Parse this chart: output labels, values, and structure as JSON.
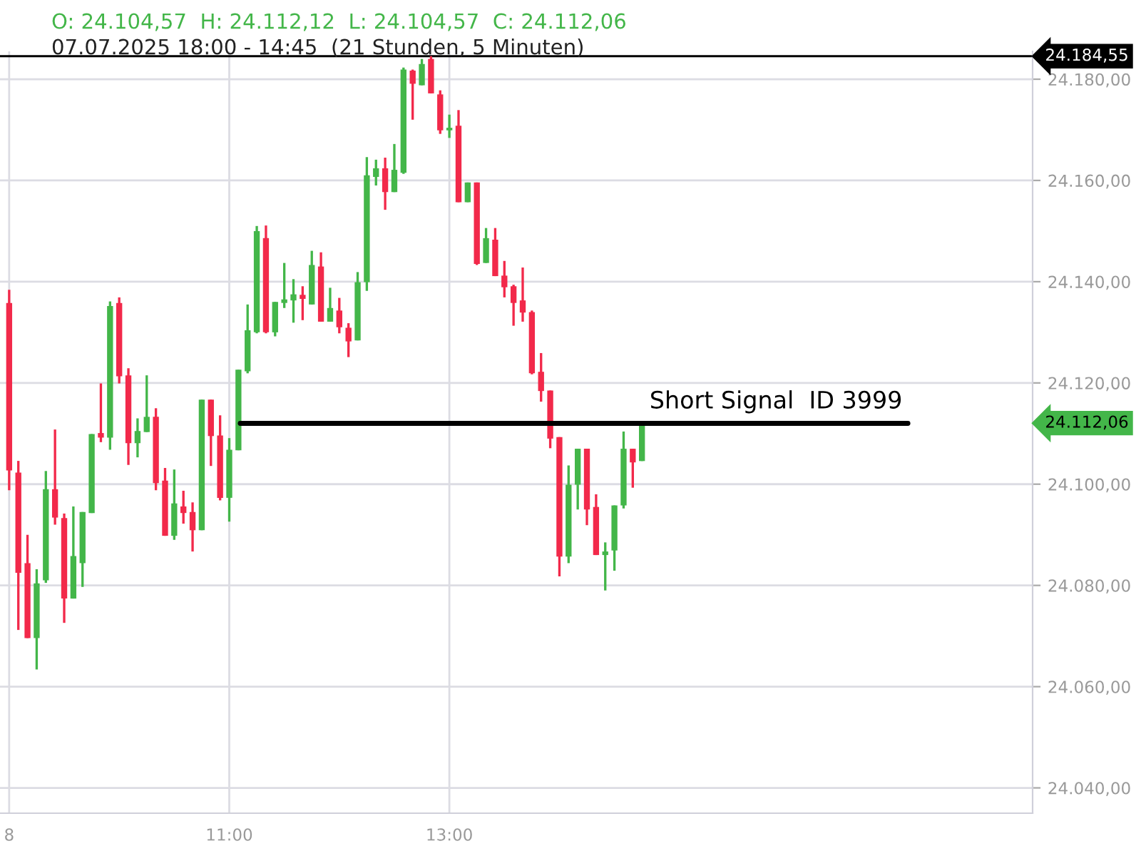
{
  "chart_data": {
    "type": "candlestick",
    "title": "O: 24.104,57  H: 24.112,12  L: 24.104,57  C: 24.112,06",
    "subtitle": "07.07.2025 18:00 - 14:45  (21 Stunden, 5 Minuten)",
    "x": [
      "2025-07-08T09:00",
      "2025-07-08T09:05",
      "2025-07-08T09:10",
      "2025-07-08T09:15",
      "2025-07-08T09:20",
      "2025-07-08T09:25",
      "2025-07-08T09:30",
      "2025-07-08T09:35",
      "2025-07-08T09:40",
      "2025-07-08T09:45",
      "2025-07-08T09:50",
      "2025-07-08T09:55",
      "2025-07-08T10:00",
      "2025-07-08T10:05",
      "2025-07-08T10:10",
      "2025-07-08T10:15",
      "2025-07-08T10:20",
      "2025-07-08T10:25",
      "2025-07-08T10:30",
      "2025-07-08T10:35",
      "2025-07-08T10:40",
      "2025-07-08T10:45",
      "2025-07-08T10:50",
      "2025-07-08T10:55",
      "2025-07-08T11:00",
      "2025-07-08T11:05",
      "2025-07-08T11:10",
      "2025-07-08T11:15",
      "2025-07-08T11:20",
      "2025-07-08T11:25",
      "2025-07-08T11:30",
      "2025-07-08T11:35",
      "2025-07-08T11:40",
      "2025-07-08T11:45",
      "2025-07-08T11:50",
      "2025-07-08T11:55",
      "2025-07-08T12:00",
      "2025-07-08T12:05",
      "2025-07-08T12:10",
      "2025-07-08T12:15",
      "2025-07-08T12:20",
      "2025-07-08T12:25",
      "2025-07-08T12:30",
      "2025-07-08T12:35",
      "2025-07-08T12:40",
      "2025-07-08T12:45",
      "2025-07-08T12:50",
      "2025-07-08T12:55",
      "2025-07-08T13:00",
      "2025-07-08T13:05",
      "2025-07-08T13:10",
      "2025-07-08T13:15",
      "2025-07-08T13:20",
      "2025-07-08T13:25",
      "2025-07-08T13:30",
      "2025-07-08T13:35",
      "2025-07-08T13:40",
      "2025-07-08T13:45",
      "2025-07-08T13:50",
      "2025-07-08T13:55",
      "2025-07-08T14:00",
      "2025-07-08T14:05",
      "2025-07-08T14:10",
      "2025-07-08T14:15",
      "2025-07-08T14:20",
      "2025-07-08T14:25",
      "2025-07-08T14:30",
      "2025-07-08T14:35",
      "2025-07-08T14:40",
      "2025-07-08T14:45"
    ],
    "ohlc": [
      [
        24135.8,
        24138.4,
        24098.8,
        24102.7
      ],
      [
        24102.3,
        24104.6,
        24071.2,
        24082.5
      ],
      [
        24084.4,
        24090.0,
        24069.6,
        24069.6
      ],
      [
        24069.6,
        24083.2,
        24063.4,
        24080.4
      ],
      [
        24081.0,
        24102.6,
        24080.5,
        24099.0
      ],
      [
        24099.0,
        24110.8,
        24092.0,
        24093.4
      ],
      [
        24093.3,
        24094.2,
        24072.6,
        24077.4
      ],
      [
        24077.4,
        24095.6,
        24077.4,
        24085.8
      ],
      [
        24084.4,
        24094.5,
        24079.7,
        24094.5
      ],
      [
        24094.3,
        24109.9,
        24094.3,
        24109.9
      ],
      [
        24110.1,
        24119.9,
        24108.3,
        24109.2
      ],
      [
        24109.2,
        24136.1,
        24106.8,
        24135.2
      ],
      [
        24135.8,
        24136.9,
        24119.9,
        24121.3
      ],
      [
        24121.5,
        24122.9,
        24103.8,
        24108.1
      ],
      [
        24108.1,
        24113.0,
        24105.3,
        24110.5
      ],
      [
        24110.3,
        24121.5,
        24110.3,
        24113.3
      ],
      [
        24113.3,
        24115.0,
        24098.8,
        24100.2
      ],
      [
        24100.7,
        24103.2,
        24089.8,
        24089.8
      ],
      [
        24089.8,
        24102.9,
        24089.0,
        24096.2
      ],
      [
        24095.6,
        24098.7,
        24092.2,
        24094.3
      ],
      [
        24094.5,
        24096.4,
        24086.7,
        24090.9
      ],
      [
        24090.9,
        24116.7,
        24090.9,
        24116.7
      ],
      [
        24116.7,
        24116.7,
        24103.6,
        24109.5
      ],
      [
        24109.6,
        24113.6,
        24096.8,
        24097.3
      ],
      [
        24097.3,
        24109.1,
        24092.6,
        24106.8
      ],
      [
        24106.7,
        24122.6,
        24106.7,
        24122.6
      ],
      [
        24122.3,
        24135.5,
        24121.9,
        24130.4
      ],
      [
        24130.0,
        24151.0,
        24129.8,
        24150.0
      ],
      [
        24148.6,
        24151.1,
        24129.8,
        24130.0
      ],
      [
        24130.0,
        24136.0,
        24129.2,
        24136.0
      ],
      [
        24135.8,
        24143.7,
        24134.8,
        24136.5
      ],
      [
        24136.3,
        24140.5,
        24131.9,
        24137.5
      ],
      [
        24137.4,
        24139.1,
        24132.4,
        24136.6
      ],
      [
        24135.5,
        24146.1,
        24135.5,
        24143.3
      ],
      [
        24143.0,
        24145.8,
        24132.1,
        24132.1
      ],
      [
        24132.1,
        24138.8,
        24132.1,
        24134.8
      ],
      [
        24134.3,
        24136.8,
        24129.8,
        24131.0
      ],
      [
        24130.9,
        24131.8,
        24125.1,
        24128.2
      ],
      [
        24128.4,
        24141.9,
        24128.4,
        24139.9
      ],
      [
        24139.9,
        24164.6,
        24138.2,
        24161.0
      ],
      [
        24160.7,
        24164.1,
        24159.0,
        24162.4
      ],
      [
        24162.4,
        24164.5,
        24154.2,
        24157.7
      ],
      [
        24157.7,
        24167.2,
        24157.7,
        24162.1
      ],
      [
        24161.5,
        24182.3,
        24161.3,
        24181.9
      ],
      [
        24181.7,
        24181.9,
        24172.0,
        24179.1
      ],
      [
        24178.8,
        24184.0,
        24178.8,
        24183.0
      ],
      [
        24184.0,
        24184.55,
        24177.2,
        24177.2
      ],
      [
        24177.0,
        24177.8,
        24169.2,
        24169.9
      ],
      [
        24169.9,
        24173.0,
        24168.4,
        24170.4
      ],
      [
        24170.8,
        24173.9,
        24155.7,
        24155.7
      ],
      [
        24155.7,
        24159.6,
        24155.7,
        24159.6
      ],
      [
        24159.6,
        24159.6,
        24143.3,
        24143.5
      ],
      [
        24143.7,
        24150.6,
        24143.7,
        24148.6
      ],
      [
        24148.3,
        24150.6,
        24141.1,
        24141.1
      ],
      [
        24141.2,
        24144.1,
        24136.9,
        24138.9
      ],
      [
        24139.1,
        24139.4,
        24131.3,
        24135.8
      ],
      [
        24136.3,
        24142.8,
        24132.1,
        24133.9
      ],
      [
        24134.0,
        24134.3,
        24121.7,
        24121.9
      ],
      [
        24122.2,
        24125.9,
        24116.3,
        24118.4
      ],
      [
        24118.5,
        24118.5,
        24107.1,
        24109.0
      ],
      [
        24109.3,
        24109.3,
        24081.8,
        24085.7
      ],
      [
        24085.7,
        24103.7,
        24084.4,
        24099.9
      ],
      [
        24099.9,
        24107.0,
        24095.0,
        24107.0
      ],
      [
        24107.0,
        24107.0,
        24091.9,
        24095.0
      ],
      [
        24095.5,
        24098.0,
        24086.0,
        24086.0
      ],
      [
        24086.0,
        24088.5,
        24079.0,
        24086.7
      ],
      [
        24086.9,
        24095.8,
        24082.9,
        24095.8
      ],
      [
        24095.8,
        24110.4,
        24095.2,
        24107.0
      ],
      [
        24107.0,
        24107.0,
        24099.3,
        24104.3
      ],
      [
        24104.57,
        24112.12,
        24104.57,
        24112.06
      ]
    ],
    "colors": [
      "#f2294a",
      "#f2294a",
      "#f2294a",
      "#43b649",
      "#43b649",
      "#f2294a",
      "#f2294a",
      "#43b649",
      "#43b649",
      "#43b649",
      "#f2294a",
      "#43b649",
      "#f2294a",
      "#f2294a",
      "#43b649",
      "#43b649",
      "#f2294a",
      "#f2294a",
      "#43b649",
      "#f2294a",
      "#f2294a",
      "#43b649",
      "#f2294a",
      "#f2294a",
      "#43b649",
      "#43b649",
      "#43b649",
      "#43b649",
      "#f2294a",
      "#43b649",
      "#43b649",
      "#43b649",
      "#f2294a",
      "#43b649",
      "#f2294a",
      "#43b649",
      "#f2294a",
      "#f2294a",
      "#43b649",
      "#43b649",
      "#43b649",
      "#f2294a",
      "#43b649",
      "#43b649",
      "#f2294a",
      "#43b649",
      "#f2294a",
      "#f2294a",
      "#43b649",
      "#f2294a",
      "#43b649",
      "#f2294a",
      "#43b649",
      "#f2294a",
      "#f2294a",
      "#f2294a",
      "#f2294a",
      "#f2294a",
      "#f2294a",
      "#f2294a",
      "#f2294a",
      "#43b649",
      "#43b649",
      "#f2294a",
      "#f2294a",
      "#43b649",
      "#43b649",
      "#43b649",
      "#f2294a",
      "#43b649"
    ],
    "series": [
      {
        "name": "Short Signal  ID 3999",
        "type": "line",
        "color": "#000000",
        "x": [
          "2025-07-08T11:06",
          "2025-07-08T17:10"
        ],
        "values": [
          24112,
          24112
        ]
      }
    ],
    "ref_lines": [
      {
        "axis": "y",
        "value": 24184.55,
        "label": "24.184,55",
        "color": "#000000",
        "line_style": "solid"
      }
    ],
    "annotations": [
      "24.112,06"
    ],
    "xlim": [
      "2025-07-08T08:55",
      "2025-07-08T18:18"
    ],
    "ylim": [
      24035,
      24185.5
    ],
    "xticks": [
      {
        "value": "2025-07-08T09:00",
        "label": "8"
      },
      {
        "value": "2025-07-08T11:00",
        "label": "11:00"
      },
      {
        "value": "2025-07-08T13:00",
        "label": "13:00"
      }
    ],
    "yticks": [
      {
        "value": 24040,
        "label": "24.040,00"
      },
      {
        "value": 24060,
        "label": "24.060,00"
      },
      {
        "value": 24080,
        "label": "24.080,00"
      },
      {
        "value": 24100,
        "label": "24.100,00"
      },
      {
        "value": 24120,
        "label": "24.120,00"
      },
      {
        "value": 24140,
        "label": "24.140,00"
      },
      {
        "value": 24160,
        "label": "24.160,00"
      },
      {
        "value": 24180,
        "label": "24.180,00"
      }
    ],
    "grid": true
  }
}
